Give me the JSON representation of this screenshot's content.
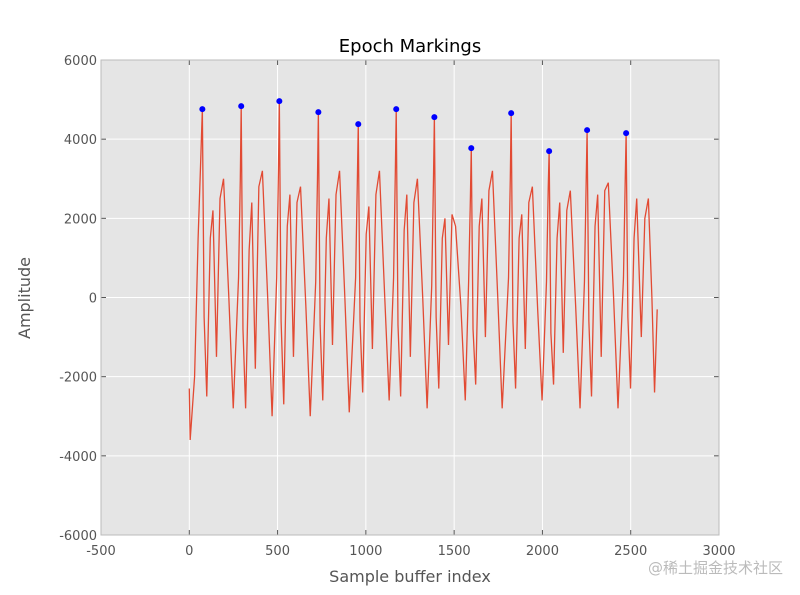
{
  "chart_data": {
    "type": "line",
    "title": "Epoch Markings",
    "xlabel": "Sample buffer index",
    "ylabel": "Amplitude",
    "watermark": "@稀土掘金技术社区",
    "xlim": [
      -500,
      3000
    ],
    "xticks": [
      -500,
      0,
      500,
      1000,
      1500,
      2000,
      2500,
      3000
    ],
    "ylim": [
      -6000,
      6000
    ],
    "yticks": [
      -6000,
      -4000,
      -2000,
      0,
      2000,
      4000,
      6000
    ],
    "grid": true,
    "series": [
      {
        "type": "line",
        "color": "#e24a33",
        "x": [
          0,
          5,
          30,
          50,
          65,
          74,
          84,
          99,
          119,
          134,
          154,
          174,
          194,
          224,
          249,
          279,
          289,
          294,
          304,
          319,
          339,
          354,
          374,
          394,
          414,
          444,
          469,
          495,
          505,
          510,
          520,
          535,
          555,
          570,
          590,
          610,
          630,
          660,
          685,
          716,
          726,
          731,
          741,
          756,
          776,
          791,
          811,
          831,
          851,
          881,
          906,
          942,
          952,
          957,
          967,
          982,
          1002,
          1017,
          1037,
          1057,
          1077,
          1107,
          1132,
          1157,
          1167,
          1172,
          1182,
          1197,
          1217,
          1232,
          1252,
          1272,
          1292,
          1322,
          1347,
          1373,
          1383,
          1388,
          1398,
          1413,
          1433,
          1448,
          1468,
          1488,
          1508,
          1538,
          1563,
          1582,
          1592,
          1597,
          1607,
          1622,
          1642,
          1657,
          1677,
          1697,
          1717,
          1747,
          1772,
          1808,
          1818,
          1823,
          1833,
          1848,
          1868,
          1883,
          1903,
          1923,
          1943,
          1973,
          1998,
          2023,
          2033,
          2038,
          2048,
          2063,
          2083,
          2098,
          2118,
          2138,
          2158,
          2188,
          2213,
          2238,
          2248,
          2253,
          2263,
          2278,
          2298,
          2313,
          2333,
          2353,
          2373,
          2403,
          2428,
          2459,
          2469,
          2474,
          2484,
          2499,
          2519,
          2534,
          2560,
          2580,
          2600,
          2620,
          2635,
          2650
        ],
        "values": [
          -2300,
          -3600,
          -2000,
          1500,
          3500,
          4760,
          -500,
          -2500,
          1500,
          2200,
          -1500,
          2500,
          3000,
          0,
          -2800,
          500,
          3000,
          4836,
          -800,
          -2800,
          1200,
          2400,
          -1800,
          2800,
          3200,
          0,
          -3000,
          500,
          3200,
          4962,
          -600,
          -2700,
          1800,
          2600,
          -1500,
          2400,
          2800,
          -200,
          -3000,
          400,
          3000,
          4684,
          -700,
          -2600,
          1500,
          2500,
          -1200,
          2600,
          3200,
          0,
          -2900,
          500,
          3000,
          4381,
          -600,
          -2400,
          1600,
          2300,
          -1300,
          2600,
          3200,
          0,
          -2600,
          500,
          3200,
          4760,
          -700,
          -2500,
          1700,
          2600,
          -1500,
          2400,
          3000,
          0,
          -2800,
          300,
          3000,
          4558,
          -500,
          -2300,
          1500,
          2000,
          -1200,
          2100,
          1800,
          -200,
          -2600,
          400,
          2500,
          3775,
          -800,
          -2200,
          1800,
          2500,
          -1000,
          2700,
          3200,
          0,
          -2800,
          500,
          3000,
          4659,
          -600,
          -2300,
          1500,
          2100,
          -1300,
          2400,
          2800,
          -300,
          -2600,
          400,
          2800,
          3699,
          -900,
          -2200,
          1500,
          2400,
          -1400,
          2200,
          2700,
          -200,
          -2800,
          400,
          3000,
          4230,
          -600,
          -2500,
          1800,
          2600,
          -1500,
          2700,
          2900,
          0,
          -2800,
          500,
          3000,
          4154,
          -500,
          -2300,
          1500,
          2500,
          -1000,
          2000,
          2500,
          0,
          -2400,
          -300
        ]
      },
      {
        "type": "scatter",
        "color": "#0000ff",
        "x": [
          74,
          294,
          510,
          731,
          957,
          1172,
          1388,
          1597,
          1823,
          2038,
          2253,
          2474
        ],
        "values": [
          4760,
          4836,
          4962,
          4684,
          4381,
          4760,
          4558,
          3775,
          4659,
          3699,
          4230,
          4154
        ]
      }
    ]
  }
}
